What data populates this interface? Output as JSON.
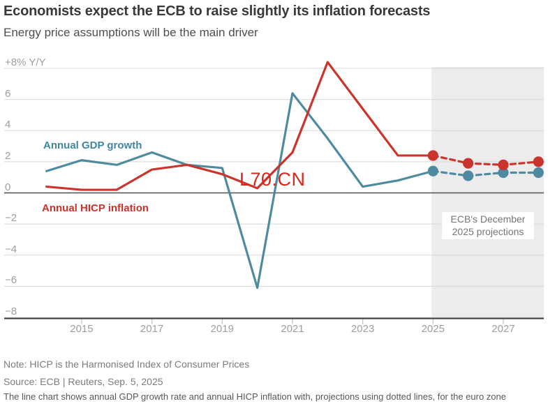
{
  "header": {
    "title": "Economists expect the ECB to raise slightly its inflation forecasts",
    "subtitle": "Energy price assumptions will be the main driver"
  },
  "watermark": "L70.CN",
  "chart_data": {
    "type": "line",
    "title": "Economists expect the ECB to raise slightly its inflation forecasts",
    "subtitle": "Energy price assumptions will be the main driver",
    "unit_label": "+8% Y/Y",
    "grid": true,
    "legend_position": "on-chart",
    "y_axis": {
      "ticks": [
        8,
        6,
        4,
        2,
        0,
        -2,
        -4,
        -6,
        -8
      ],
      "tick_labels": [
        "+8% Y/Y",
        "6",
        "4",
        "2",
        "0",
        "−2",
        "−4",
        "−6",
        "−8"
      ],
      "min": -8,
      "max": 8
    },
    "x_axis": {
      "start_year": 2014,
      "end_year": 2028,
      "tick_labels": [
        "2015",
        "2017",
        "2019",
        "2021",
        "2023",
        "2025",
        "2027"
      ]
    },
    "years_actual": [
      2014,
      2015,
      2016,
      2017,
      2018,
      2019,
      2020,
      2021,
      2022,
      2023,
      2024,
      2025
    ],
    "years_projected": [
      2025,
      2026,
      2027,
      2028
    ],
    "series": [
      {
        "name": "Annual GDP growth",
        "color": "#4e8ba0",
        "actual": [
          1.4,
          2.1,
          1.8,
          2.6,
          1.8,
          1.6,
          -6.1,
          6.4,
          3.5,
          0.4,
          0.8,
          1.4
        ],
        "projected": [
          1.4,
          1.1,
          1.3,
          1.3
        ]
      },
      {
        "name": "Annual HICP inflation",
        "color": "#cb342d",
        "actual": [
          0.4,
          0.2,
          0.2,
          1.5,
          1.8,
          1.2,
          0.3,
          2.6,
          8.4,
          5.4,
          2.4,
          2.4
        ],
        "projected": [
          2.4,
          1.9,
          1.8,
          2.0
        ]
      }
    ],
    "projection_band": {
      "label_line1": "ECB's December",
      "label_line2": "2025 projections",
      "start_year": 2025,
      "end_year": 2028,
      "fill": "#ececec"
    }
  },
  "footer": {
    "note": "Note: HICP is the Harmonised Index of Consumer Prices",
    "source": "Source: ECB | Reuters, Sep. 5, 2025",
    "caption": "The line chart shows annual GDP growth rate and annual HICP inflation with, projections using dotted lines, for the euro zone"
  }
}
